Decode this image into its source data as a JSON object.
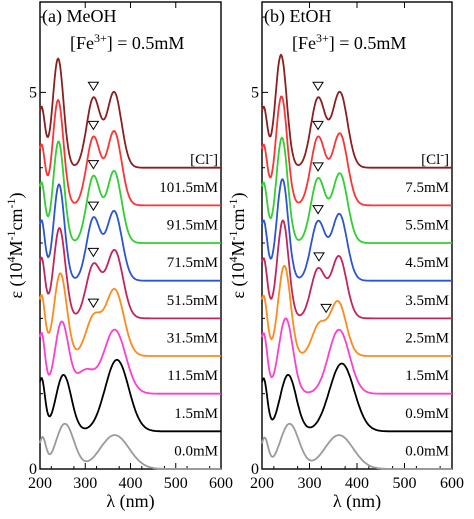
{
  "chart_data": [
    {
      "type": "line",
      "title": "(a) MeOH",
      "subtitle_prefix": "[Fe",
      "subtitle_sup": "3+",
      "subtitle_suffix": "] = 0.5mM",
      "xlabel": "λ (nm)",
      "ylabel_parts": [
        "ε (10",
        "4",
        "M",
        "-1",
        "cm",
        "-1",
        ")"
      ],
      "xlim": [
        200,
        600
      ],
      "ylim": [
        0,
        6.2
      ],
      "x_ticks": [
        "200",
        "300",
        "400",
        "500",
        "600"
      ],
      "y_ticks": [
        {
          "value": 0,
          "label": "0"
        },
        {
          "value": 5,
          "label": "5"
        }
      ],
      "legend_header": "[Cl",
      "legend_header_sup": "-",
      "legend_header_end": "]",
      "offset_step": 0.5,
      "series": [
        {
          "name": "0.0mM",
          "color": "#9a9a9a",
          "peaks": [
            [
              205,
              0.4,
              8
            ],
            [
              255,
              0.6,
              20
            ],
            [
              365,
              0.45,
              32
            ]
          ],
          "markers": []
        },
        {
          "name": "1.5mM",
          "color": "#000000",
          "peaks": [
            [
              203,
              0.7,
              8
            ],
            [
              252,
              0.75,
              17
            ],
            [
              370,
              0.95,
              26
            ]
          ],
          "markers": []
        },
        {
          "name": "11.5mM",
          "color": "#ff3dd0",
          "peaks": [
            [
              203,
              0.8,
              8
            ],
            [
              248,
              0.95,
              15
            ],
            [
              300,
              0.3,
              20
            ],
            [
              365,
              0.85,
              24
            ]
          ],
          "markers": []
        },
        {
          "name": "31.5mM",
          "color": "#ff8a1c",
          "peaks": [
            [
              203,
              0.8,
              8
            ],
            [
              245,
              1.1,
              14
            ],
            [
              318,
              0.5,
              17
            ],
            [
              365,
              0.88,
              20
            ]
          ],
          "markers": [
            318
          ]
        },
        {
          "name": "51.5mM",
          "color": "#c4245a",
          "peaks": [
            [
              203,
              0.8,
              8
            ],
            [
              243,
              1.2,
              13
            ],
            [
              318,
              0.7,
              16
            ],
            [
              365,
              0.9,
              18
            ]
          ],
          "markers": [
            318
          ]
        },
        {
          "name": "71.5mM",
          "color": "#2a55d5",
          "peaks": [
            [
              203,
              0.8,
              8
            ],
            [
              242,
              1.28,
              12
            ],
            [
              318,
              0.82,
              15
            ],
            [
              364,
              0.92,
              17
            ]
          ],
          "markers": [
            318
          ]
        },
        {
          "name": "91.5mM",
          "color": "#2fd02f",
          "peaks": [
            [
              203,
              0.8,
              8
            ],
            [
              241,
              1.35,
              12
            ],
            [
              318,
              0.88,
              15
            ],
            [
              364,
              0.95,
              16
            ]
          ],
          "markers": [
            318
          ]
        },
        {
          "name": "101.5mM",
          "color": "#ff3333",
          "peaks": [
            [
              203,
              0.8,
              8
            ],
            [
              240,
              1.4,
              12
            ],
            [
              318,
              0.9,
              15
            ],
            [
              364,
              0.98,
              16
            ]
          ],
          "markers": [
            318
          ]
        },
        {
          "name": "",
          "color": "#8b1f1f",
          "peaks": [
            [
              203,
              0.8,
              8
            ],
            [
              240,
              1.45,
              12
            ],
            [
              318,
              0.92,
              15
            ],
            [
              364,
              1.0,
              16
            ]
          ],
          "markers": [
            318
          ]
        }
      ]
    },
    {
      "type": "line",
      "title": "(b) EtOH",
      "subtitle_prefix": "[Fe",
      "subtitle_sup": "3+",
      "subtitle_suffix": "] = 0.5mM",
      "xlabel": "λ (nm)",
      "ylabel_parts": [
        "ε (10",
        "4",
        "M",
        "-1",
        "cm",
        "-1",
        ")"
      ],
      "xlim": [
        200,
        600
      ],
      "ylim": [
        0,
        6.2
      ],
      "x_ticks": [
        "200",
        "300",
        "400",
        "500",
        "600"
      ],
      "y_ticks": [
        {
          "value": 0,
          "label": "0"
        },
        {
          "value": 5,
          "label": "5"
        }
      ],
      "legend_header": "[Cl",
      "legend_header_sup": "-",
      "legend_header_end": "]",
      "offset_step": 0.5,
      "series": [
        {
          "name": "0.0mM",
          "color": "#9a9a9a",
          "peaks": [
            [
              205,
              0.4,
              8
            ],
            [
              258,
              0.6,
              20
            ],
            [
              362,
              0.45,
              30
            ]
          ],
          "markers": []
        },
        {
          "name": "0.9mM",
          "color": "#000000",
          "peaks": [
            [
              203,
              0.7,
              8
            ],
            [
              255,
              0.75,
              17
            ],
            [
              368,
              0.9,
              26
            ]
          ],
          "markers": []
        },
        {
          "name": "1.5mM",
          "color": "#ff3dd0",
          "peaks": [
            [
              203,
              0.8,
              8
            ],
            [
              250,
              1.0,
              15
            ],
            [
              362,
              0.85,
              22
            ]
          ],
          "markers": []
        },
        {
          "name": "2.5mM",
          "color": "#ff8a1c",
          "peaks": [
            [
              203,
              0.8,
              8
            ],
            [
              247,
              1.2,
              13
            ],
            [
              320,
              0.4,
              15
            ],
            [
              360,
              0.72,
              17
            ]
          ],
          "markers": [
            335
          ]
        },
        {
          "name": "3.5mM",
          "color": "#c4245a",
          "peaks": [
            [
              203,
              0.8,
              8
            ],
            [
              244,
              1.3,
              12
            ],
            [
              318,
              0.65,
              15
            ],
            [
              362,
              0.82,
              16
            ]
          ],
          "markers": [
            320
          ]
        },
        {
          "name": "4.5mM",
          "color": "#2a55d5",
          "peaks": [
            [
              203,
              0.8,
              8
            ],
            [
              243,
              1.35,
              12
            ],
            [
              318,
              0.78,
              15
            ],
            [
              363,
              0.88,
              16
            ]
          ],
          "markers": [
            318
          ]
        },
        {
          "name": "5.5mM",
          "color": "#2fd02f",
          "peaks": [
            [
              203,
              0.8,
              8
            ],
            [
              242,
              1.4,
              12
            ],
            [
              318,
              0.85,
              15
            ],
            [
              364,
              0.92,
              16
            ]
          ],
          "markers": [
            318
          ]
        },
        {
          "name": "7.5mM",
          "color": "#ff3333",
          "peaks": [
            [
              203,
              0.8,
              8
            ],
            [
              241,
              1.45,
              12
            ],
            [
              318,
              0.9,
              15
            ],
            [
              364,
              0.95,
              16
            ]
          ],
          "markers": [
            318
          ]
        },
        {
          "name": "",
          "color": "#8b1f1f",
          "peaks": [
            [
              203,
              0.8,
              8
            ],
            [
              240,
              1.5,
              12
            ],
            [
              318,
              0.92,
              15
            ],
            [
              364,
              1.0,
              16
            ]
          ],
          "markers": [
            318
          ]
        }
      ]
    }
  ]
}
